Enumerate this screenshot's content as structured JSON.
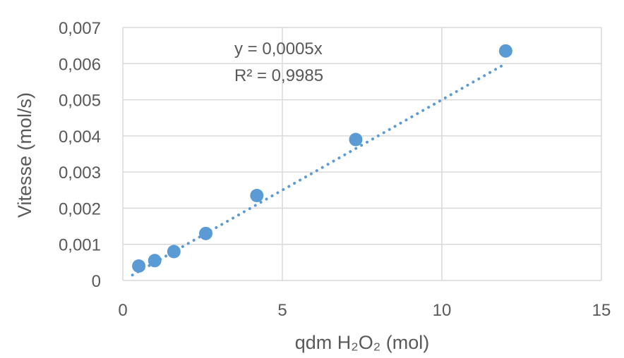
{
  "chart_data": {
    "type": "scatter",
    "xlabel": "qdm H₂O₂ (mol)",
    "ylabel": "Vitesse (mol/s)",
    "xlim": [
      0,
      15
    ],
    "ylim": [
      0,
      0.007
    ],
    "x_ticks": [
      "0",
      "5",
      "10",
      "15"
    ],
    "y_ticks": [
      "0",
      "0,001",
      "0,002",
      "0,003",
      "0,004",
      "0,005",
      "0,006",
      "0,007"
    ],
    "grid": true,
    "series": [
      {
        "x": [
          0.5,
          1.0,
          1.6,
          2.6,
          4.2,
          7.3,
          12.0
        ],
        "y": [
          0.0004,
          0.00055,
          0.0008,
          0.0013,
          0.00235,
          0.0039,
          0.00635
        ]
      }
    ],
    "trendline": {
      "type": "linear",
      "slope": 0.0005,
      "intercept": 0
    },
    "annotations": [
      "y = 0,0005x",
      "R² = 0,9985"
    ],
    "colors": {
      "marker": "#5B9BD5",
      "grid": "#D9D9D9",
      "text": "#595959"
    }
  }
}
